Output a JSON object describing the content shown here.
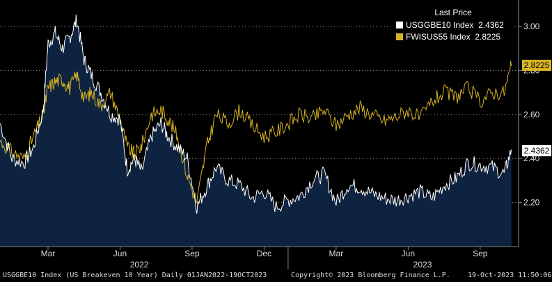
{
  "chart_data": {
    "type": "line",
    "title": "Last Price",
    "ylim": [
      2.0,
      3.12
    ],
    "y_ticks": [
      "2.20",
      "2.40",
      "2.60",
      "2.80",
      "3.00"
    ],
    "x_range_months": [
      0,
      9.6
    ],
    "x_ticks": [
      {
        "label": "Mar",
        "month": 2
      },
      {
        "label": "Jun",
        "month": 5
      },
      {
        "label": "Sep",
        "month": 8
      },
      {
        "label": "Dec",
        "month": 11
      },
      {
        "label": "Mar",
        "month": 14
      },
      {
        "label": "Jun",
        "month": 17
      },
      {
        "label": "Sep",
        "month": 20
      }
    ],
    "year_labels": [
      {
        "label": "2022",
        "month": 5.8
      },
      {
        "label": "2023",
        "month": 17.6
      }
    ],
    "year_divider_month": 12,
    "x_month_span": [
      0,
      21.6
    ],
    "series": [
      {
        "name": "USGGBE10 Index",
        "legend_value": "2.4362",
        "last": "2.4362",
        "color": "#ffffff",
        "fill": "#0d2340",
        "month": [
          0,
          0.5,
          1,
          1.4,
          1.8,
          2,
          2.3,
          2.6,
          2.9,
          3.2,
          3.5,
          3.8,
          4.2,
          4.6,
          5,
          5.3,
          5.6,
          5.9,
          6.3,
          6.7,
          7,
          7.4,
          7.8,
          8.2,
          8.6,
          9,
          9.5,
          10,
          10.5,
          11,
          11.5,
          12,
          12.5,
          13,
          13.5,
          14,
          14.5,
          15,
          15.5,
          16,
          16.5,
          17,
          17.5,
          18,
          18.5,
          19,
          19.5,
          20,
          20.5,
          21,
          21.3
        ],
        "values": [
          2.56,
          2.4,
          2.38,
          2.45,
          2.62,
          2.92,
          2.97,
          2.9,
          2.95,
          3.03,
          2.85,
          2.78,
          2.7,
          2.6,
          2.58,
          2.35,
          2.4,
          2.34,
          2.5,
          2.56,
          2.5,
          2.45,
          2.4,
          2.18,
          2.27,
          2.36,
          2.3,
          2.28,
          2.22,
          2.25,
          2.18,
          2.21,
          2.23,
          2.3,
          2.33,
          2.2,
          2.28,
          2.27,
          2.24,
          2.22,
          2.21,
          2.23,
          2.25,
          2.22,
          2.28,
          2.31,
          2.38,
          2.37,
          2.36,
          2.33,
          2.44
        ]
      },
      {
        "name": "FWISUS55 Index",
        "legend_value": "2.8225",
        "last": "2.8225",
        "color": "#d8b324",
        "fill": "none",
        "month": [
          0,
          0.5,
          1,
          1.4,
          1.8,
          2,
          2.3,
          2.6,
          2.9,
          3.2,
          3.5,
          3.8,
          4.2,
          4.6,
          5,
          5.3,
          5.6,
          5.9,
          6.3,
          6.7,
          7,
          7.4,
          7.8,
          8.2,
          8.6,
          9,
          9.5,
          10,
          10.5,
          11,
          11.5,
          12,
          12.5,
          13,
          13.5,
          14,
          14.5,
          15,
          15.5,
          16,
          16.5,
          17,
          17.5,
          18,
          18.5,
          19,
          19.5,
          20,
          20.5,
          21,
          21.3
        ],
        "values": [
          2.48,
          2.43,
          2.4,
          2.5,
          2.6,
          2.72,
          2.75,
          2.76,
          2.72,
          2.78,
          2.67,
          2.7,
          2.64,
          2.7,
          2.58,
          2.45,
          2.42,
          2.46,
          2.6,
          2.62,
          2.58,
          2.5,
          2.32,
          2.2,
          2.45,
          2.6,
          2.56,
          2.62,
          2.55,
          2.5,
          2.52,
          2.56,
          2.6,
          2.58,
          2.62,
          2.55,
          2.6,
          2.63,
          2.6,
          2.57,
          2.59,
          2.62,
          2.58,
          2.66,
          2.7,
          2.68,
          2.72,
          2.66,
          2.7,
          2.7,
          2.82
        ]
      }
    ]
  },
  "footer": {
    "left": "USGGBE10 Index (US Breakeven 10 Year)  Daily 01JAN2022-19OCT2023",
    "center": "Copyright© 2023 Bloomberg Finance L.P.",
    "right": "19-Oct-2023 11:50:06"
  }
}
